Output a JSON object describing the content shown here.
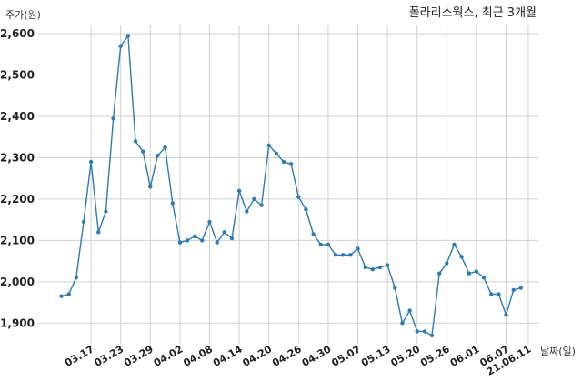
{
  "chart_data": {
    "type": "line",
    "title": "폴라리스웍스, 최근 3개월",
    "xlabel": "날짜(일)",
    "ylabel": "주가(원)",
    "ylim": [
      1850,
      2620
    ],
    "yticks": [
      1900,
      2000,
      2100,
      2200,
      2300,
      2400,
      2500,
      2600
    ],
    "ytick_labels": [
      "1,900",
      "2,000",
      "2,100",
      "2,200",
      "2,300",
      "2,400",
      "2,500",
      "2,600"
    ],
    "xtick_labels": [
      "03.17",
      "03.23",
      "03.29",
      "04.02",
      "04.08",
      "04.14",
      "04.20",
      "04.26",
      "04.30",
      "05.07",
      "05.13",
      "05.20",
      "05.26",
      "06.01",
      "06.07",
      "21.06.11"
    ],
    "xtick_index": [
      4,
      8,
      12,
      16,
      20,
      24,
      28,
      32,
      36,
      40,
      44,
      48,
      52,
      56,
      60,
      63
    ],
    "grid": true,
    "color": "#2e7bb0",
    "series": [
      {
        "values": [
          1965,
          1970,
          2010,
          2145,
          2290,
          2120,
          2170,
          2395,
          2570,
          2595,
          2340,
          2315,
          2230,
          2305,
          2325,
          2190,
          2095,
          2100,
          2110,
          2100,
          2145,
          2095,
          2120,
          2105,
          2220,
          2170,
          2200,
          2185,
          2330,
          2310,
          2290,
          2285,
          2205,
          2175,
          2115,
          2090,
          2090,
          2065,
          2065,
          2065,
          2080,
          2035,
          2030,
          2035,
          2040,
          1985,
          1900,
          1930,
          1880,
          1880,
          1870,
          2020,
          2045,
          2090,
          2060,
          2020,
          2025,
          2010,
          1970,
          1970,
          1920,
          1980,
          1985
        ]
      }
    ]
  }
}
